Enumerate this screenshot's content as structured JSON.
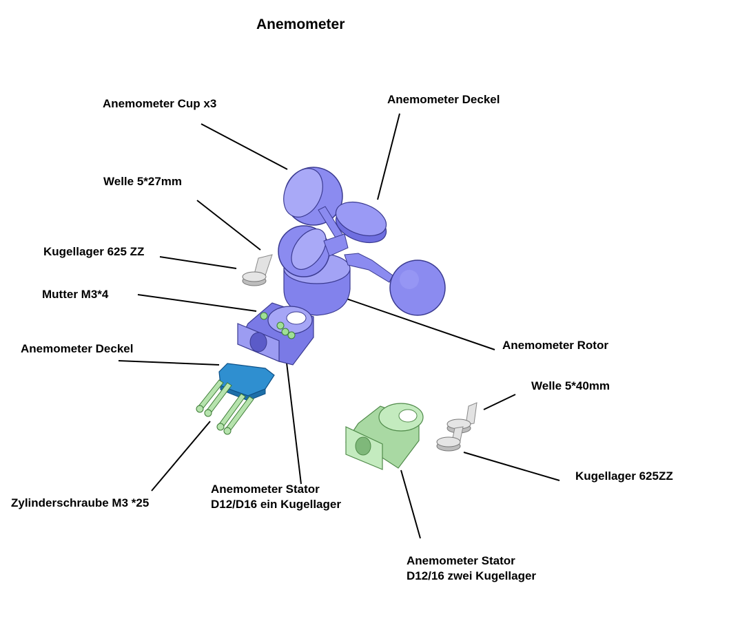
{
  "title": "Anemometer",
  "labels": {
    "cup": "Anemometer Cup x3",
    "deckel_top": "Anemometer Deckel",
    "welle_27": "Welle 5*27mm",
    "kugellager_625_zz": "Kugellager 625 ZZ",
    "mutter": "Mutter M3*4",
    "deckel_left": "Anemometer Deckel",
    "rotor": "Anemometer Rotor",
    "welle_40": "Welle 5*40mm",
    "kugellager_625zz": "Kugellager 625ZZ",
    "zylinderschraube": "Zylinderschraube M3 *25",
    "stator_one_line1": "Anemometer Stator",
    "stator_one_line2": "D12/D16 ein Kugellager",
    "stator_two_line1": "Anemometer Stator",
    "stator_two_line2": "D12/16 zwei Kugellager"
  },
  "colors": {
    "rotor_parts": "#8b8bf0",
    "rotor_dark": "#5a5ad0",
    "lid_blue": "#2f8fd0",
    "stator_green": "#b9e3b5",
    "stator_green_dark": "#7fb87a",
    "metal": "#d8d8d8",
    "leader_lines": "#000000"
  }
}
